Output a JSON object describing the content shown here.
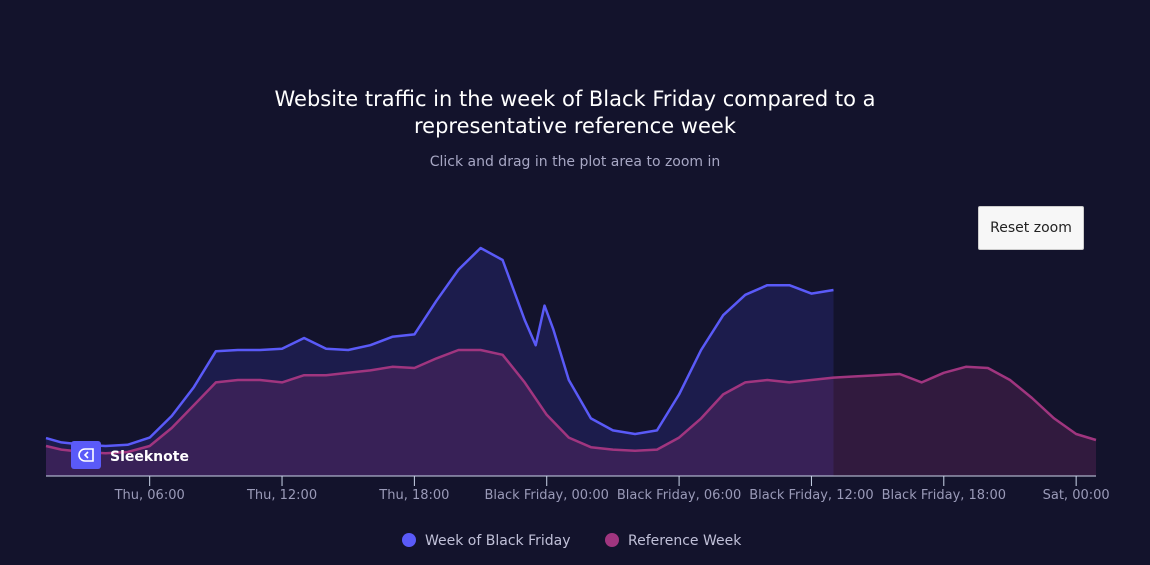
{
  "chart_data": {
    "type": "area",
    "title": "Website traffic in the week of Black Friday compared to a representative reference week",
    "subtitle": "Click and drag in the plot area to zoom in",
    "button": "Reset zoom",
    "logo": "Sleeknote",
    "xlim": [
      1.3,
      48.9
    ],
    "ylim": [
      0,
      100
    ],
    "xticks": [
      {
        "value": 6,
        "label": "Thu, 06:00"
      },
      {
        "value": 12,
        "label": "Thu, 12:00"
      },
      {
        "value": 18,
        "label": "Thu, 18:00"
      },
      {
        "value": 24,
        "label": "Black Friday, 00:00"
      },
      {
        "value": 30,
        "label": "Black Friday, 06:00"
      },
      {
        "value": 36,
        "label": "Black Friday, 12:00"
      },
      {
        "value": 42,
        "label": "Black Friday, 18:00"
      },
      {
        "value": 48,
        "label": "Sat, 00:00"
      }
    ],
    "series": [
      {
        "name": "Week of Black Friday",
        "color": "#5a5af8",
        "x": [
          1.3,
          2,
          3,
          4,
          5,
          6,
          7,
          8,
          9,
          10,
          11,
          12,
          13,
          14,
          15,
          16,
          17,
          18,
          19,
          20,
          21,
          22,
          23,
          23.5,
          23.9,
          24.3,
          25,
          26,
          27,
          28,
          29,
          30,
          31,
          32,
          33,
          34,
          35,
          36,
          37
        ],
        "values": [
          15.8,
          14,
          13,
          12.5,
          13,
          16,
          25,
          37,
          52,
          52.5,
          52.5,
          53,
          57.5,
          53,
          52.5,
          54.5,
          58,
          59,
          73,
          86,
          95,
          90,
          65,
          54.5,
          71,
          61,
          40,
          24,
          19,
          17.5,
          19,
          34,
          52.5,
          67,
          75.5,
          79.5,
          79.5,
          76,
          77.5
        ]
      },
      {
        "name": "Reference Week",
        "color": "#a0357f",
        "x": [
          1.3,
          2,
          3,
          4,
          5,
          6,
          7,
          8,
          9,
          10,
          11,
          12,
          13,
          14,
          15,
          16,
          17,
          18,
          19,
          20,
          21,
          22,
          23,
          24,
          25,
          26,
          27,
          28,
          29,
          30,
          31,
          32,
          33,
          34,
          35,
          36,
          37,
          38,
          39,
          40,
          41,
          42,
          43,
          44,
          45,
          46,
          47,
          48,
          48.9
        ],
        "values": [
          12.5,
          11,
          10,
          9.5,
          10,
          12.5,
          20,
          29.5,
          39,
          40,
          40,
          39,
          42,
          42,
          43,
          44,
          45.5,
          45,
          49,
          52.5,
          52.5,
          50.5,
          39,
          25.5,
          16,
          12,
          11,
          10.5,
          11,
          16,
          24,
          34,
          39,
          40,
          39,
          40,
          41,
          41.5,
          42,
          42.5,
          39,
          43,
          45.5,
          45,
          40,
          32.5,
          24,
          17.5,
          15
        ]
      }
    ]
  }
}
